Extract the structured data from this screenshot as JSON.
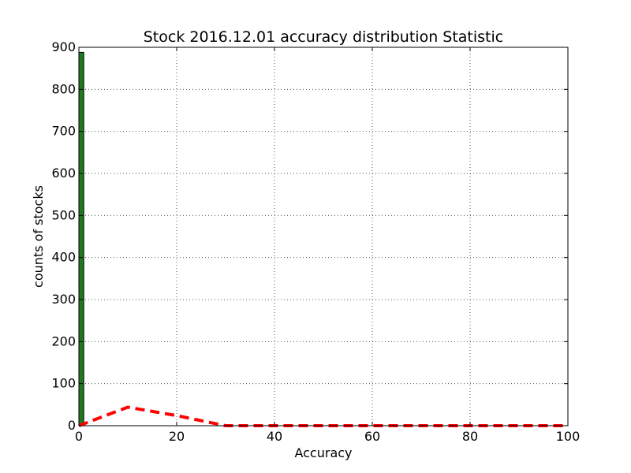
{
  "chart_data": {
    "type": "bar",
    "title": "Stock 2016.12.01 accuracy distribution Statistic",
    "xlabel": "Accuracy",
    "ylabel": "counts of stocks",
    "xlim": [
      0,
      100
    ],
    "ylim": [
      0,
      900
    ],
    "xticks": [
      "0",
      "20",
      "40",
      "60",
      "80",
      "100"
    ],
    "yticks": [
      "0",
      "100",
      "200",
      "300",
      "400",
      "500",
      "600",
      "700",
      "800",
      "900"
    ],
    "grid": true,
    "bars": [
      {
        "x_start": 0,
        "x_end": 1,
        "value": 888
      }
    ],
    "line": {
      "name": "",
      "style": "dashed",
      "x": [
        0,
        10,
        20,
        30,
        40,
        50,
        60,
        70,
        80,
        90,
        100
      ],
      "y": [
        0,
        44,
        24,
        0,
        0,
        0,
        0,
        0,
        0,
        0,
        0
      ]
    },
    "colors": {
      "bar": "#1f7a1f",
      "bar_edge": "#000000",
      "line": "#ff0000",
      "grid": "#555555"
    }
  }
}
